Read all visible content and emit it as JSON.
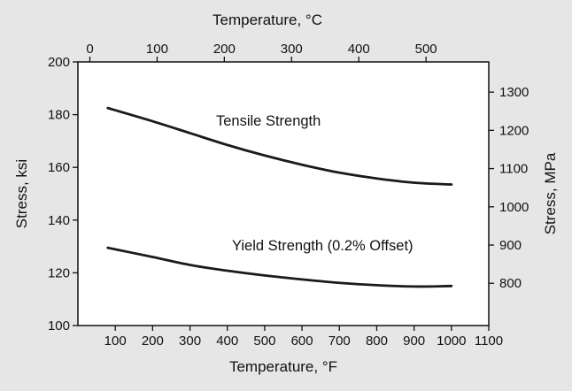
{
  "chart_data": {
    "type": "line",
    "x_bottom": {
      "label": "Temperature, °F",
      "ticks": [
        100,
        200,
        300,
        400,
        500,
        600,
        700,
        800,
        900,
        1000,
        1100
      ],
      "range": [
        0,
        1100
      ]
    },
    "x_top": {
      "label": "Temperature, °C",
      "ticks": [
        0,
        100,
        200,
        300,
        400,
        500
      ]
    },
    "y_left": {
      "label": "Stress, ksi",
      "ticks": [
        100,
        120,
        140,
        160,
        180,
        200
      ],
      "range": [
        100,
        200
      ]
    },
    "y_right": {
      "label": "Stress, MPa",
      "ticks": [
        800,
        900,
        1000,
        1100,
        1200,
        1300
      ]
    },
    "series": [
      {
        "name": "Tensile Strength",
        "x": [
          80,
          200,
          300,
          400,
          500,
          600,
          700,
          800,
          900,
          1000
        ],
        "y": [
          182.5,
          177.5,
          173,
          168.5,
          164.5,
          161,
          158,
          155.8,
          154.2,
          153.5
        ]
      },
      {
        "name": "Yield Strength (0.2% Offset)",
        "x": [
          80,
          200,
          300,
          400,
          500,
          600,
          700,
          800,
          900,
          1000
        ],
        "y": [
          129.5,
          126,
          123,
          120.8,
          119,
          117.5,
          116.2,
          115.3,
          114.8,
          115
        ]
      }
    ],
    "grid": false,
    "legend": "none"
  }
}
